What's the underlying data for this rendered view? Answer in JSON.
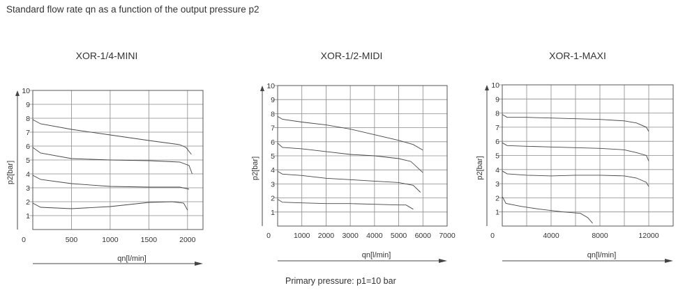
{
  "title": "Standard flow rate qn as a function of the output pressure p2",
  "footer": "Primary pressure: p1=10 bar",
  "chart_data": [
    {
      "type": "line",
      "title": "XOR-1/4-MINI",
      "xlabel": "qn[l/min]",
      "ylabel": "p2[bar]",
      "xlim": [
        0,
        2200
      ],
      "ylim": [
        0,
        10
      ],
      "x_ticks": [
        500,
        1000,
        1500,
        2000
      ],
      "x_tick_labels": [
        "500",
        "1000",
        "1500",
        "2000"
      ],
      "x_origin_label": "0",
      "y_ticks": [
        1,
        2,
        3,
        4,
        5,
        6,
        7,
        8,
        9,
        10
      ],
      "grid": true,
      "series": [
        {
          "x": [
            0,
            100,
            500,
            1000,
            1500,
            1900,
            1980,
            2050
          ],
          "y": [
            7.9,
            7.6,
            7.2,
            6.8,
            6.4,
            6.1,
            5.9,
            5.4
          ]
        },
        {
          "x": [
            0,
            100,
            500,
            1000,
            1500,
            1900,
            2020,
            2060
          ],
          "y": [
            5.9,
            5.5,
            5.1,
            5.0,
            4.95,
            4.85,
            4.6,
            4.0
          ]
        },
        {
          "x": [
            0,
            100,
            500,
            1000,
            1500,
            1900,
            2020
          ],
          "y": [
            3.9,
            3.6,
            3.3,
            3.1,
            3.05,
            3.05,
            2.9
          ]
        },
        {
          "x": [
            0,
            100,
            500,
            1000,
            1500,
            1800,
            1950,
            2000
          ],
          "y": [
            1.9,
            1.6,
            1.5,
            1.65,
            1.95,
            2.0,
            1.9,
            1.4
          ]
        }
      ]
    },
    {
      "type": "line",
      "title": "XOR-1/2-MIDI",
      "xlabel": "qn[l/min]",
      "ylabel": "p2[bar]",
      "xlim": [
        0,
        7000
      ],
      "ylim": [
        0,
        10
      ],
      "x_ticks": [
        1000,
        2000,
        3000,
        4000,
        5000,
        6000,
        7000
      ],
      "x_tick_labels": [
        "1000",
        "2000",
        "3000",
        "4000",
        "5000",
        "6000",
        "7000"
      ],
      "x_origin_label": "0",
      "y_ticks": [
        1,
        2,
        3,
        4,
        5,
        6,
        7,
        8,
        9,
        10
      ],
      "grid": true,
      "series": [
        {
          "x": [
            0,
            200,
            1000,
            2000,
            3000,
            4000,
            5000,
            5600,
            6000
          ],
          "y": [
            7.8,
            7.6,
            7.4,
            7.2,
            6.9,
            6.5,
            6.1,
            5.8,
            5.4
          ]
        },
        {
          "x": [
            0,
            200,
            1000,
            2000,
            3000,
            4000,
            5000,
            5500,
            6000
          ],
          "y": [
            5.9,
            5.6,
            5.5,
            5.3,
            5.1,
            5.0,
            4.8,
            4.6,
            3.8
          ]
        },
        {
          "x": [
            0,
            200,
            1000,
            2000,
            3000,
            4000,
            5000,
            5600,
            5900
          ],
          "y": [
            3.9,
            3.7,
            3.6,
            3.4,
            3.3,
            3.2,
            3.1,
            2.9,
            2.4
          ]
        },
        {
          "x": [
            0,
            200,
            1000,
            2000,
            3000,
            4000,
            5000,
            5300,
            5600
          ],
          "y": [
            1.9,
            1.7,
            1.65,
            1.6,
            1.6,
            1.55,
            1.5,
            1.5,
            1.2
          ]
        }
      ]
    },
    {
      "type": "line",
      "title": "XOR-1-MAXI",
      "xlabel": "qn[l/min]",
      "ylabel": "p2[bar]",
      "xlim": [
        0,
        14000
      ],
      "ylim": [
        0,
        10
      ],
      "x_ticks": [
        4000,
        8000,
        12000
      ],
      "x_tick_labels": [
        "4000",
        "8000",
        "12000"
      ],
      "x_origin_label": "0",
      "y_ticks": [
        1,
        2,
        3,
        4,
        5,
        6,
        7,
        8,
        9,
        10
      ],
      "grid_x": [
        2000,
        4000,
        6000,
        8000,
        10000,
        12000,
        14000
      ],
      "grid": true,
      "series": [
        {
          "x": [
            0,
            400,
            2000,
            4000,
            6000,
            8000,
            10000,
            11000,
            11800,
            12000
          ],
          "y": [
            7.9,
            7.7,
            7.7,
            7.65,
            7.6,
            7.55,
            7.45,
            7.3,
            7.0,
            6.7
          ]
        },
        {
          "x": [
            0,
            400,
            2000,
            4000,
            6000,
            8000,
            10000,
            11000,
            11800,
            12000
          ],
          "y": [
            5.9,
            5.7,
            5.65,
            5.6,
            5.55,
            5.5,
            5.4,
            5.2,
            5.0,
            4.6
          ]
        },
        {
          "x": [
            0,
            400,
            2000,
            4000,
            6000,
            8000,
            10000,
            11000,
            11800,
            12000
          ],
          "y": [
            3.9,
            3.7,
            3.6,
            3.55,
            3.6,
            3.6,
            3.55,
            3.4,
            3.1,
            2.8
          ]
        },
        {
          "x": [
            0,
            300,
            1500,
            3000,
            5000,
            6400,
            7000,
            7400
          ],
          "y": [
            2.1,
            1.6,
            1.4,
            1.2,
            1.0,
            0.9,
            0.6,
            0.2
          ]
        }
      ]
    }
  ]
}
